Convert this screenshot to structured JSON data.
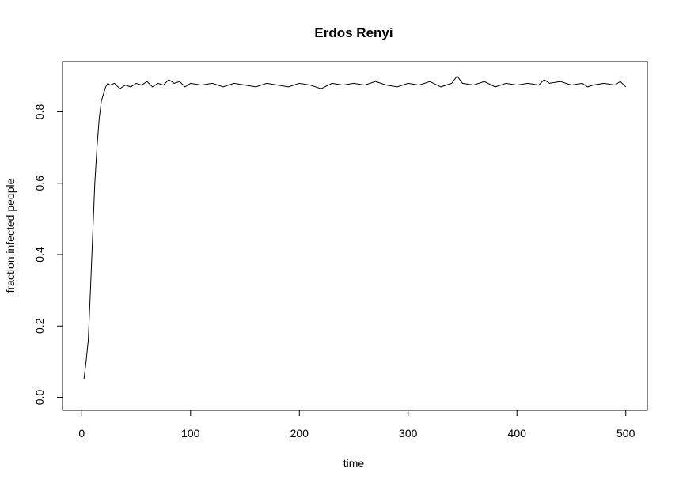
{
  "chart_data": {
    "type": "line",
    "title": "Erdos Renyi",
    "xlabel": "time",
    "ylabel": "fraction infected people",
    "xlim": [
      1,
      500
    ],
    "ylim": [
      0.0,
      0.9
    ],
    "x_ticks": [
      0,
      100,
      200,
      300,
      400,
      500
    ],
    "x_tick_labels": [
      "0",
      "100",
      "200",
      "300",
      "400",
      "500"
    ],
    "y_ticks": [
      0.0,
      0.2,
      0.4,
      0.6,
      0.8
    ],
    "y_tick_labels": [
      "0.0",
      "0.2",
      "0.4",
      "0.6",
      "0.8"
    ],
    "grid": false,
    "legend": "none",
    "series": [
      {
        "color": "#000000",
        "points": [
          [
            2,
            0.05
          ],
          [
            4,
            0.1
          ],
          [
            6,
            0.16
          ],
          [
            8,
            0.3
          ],
          [
            10,
            0.45
          ],
          [
            12,
            0.6
          ],
          [
            14,
            0.7
          ],
          [
            16,
            0.78
          ],
          [
            18,
            0.83
          ],
          [
            20,
            0.85
          ],
          [
            22,
            0.87
          ],
          [
            24,
            0.88
          ],
          [
            26,
            0.875
          ],
          [
            30,
            0.88
          ],
          [
            35,
            0.865
          ],
          [
            40,
            0.875
          ],
          [
            45,
            0.87
          ],
          [
            50,
            0.88
          ],
          [
            55,
            0.875
          ],
          [
            60,
            0.885
          ],
          [
            65,
            0.87
          ],
          [
            70,
            0.88
          ],
          [
            75,
            0.875
          ],
          [
            80,
            0.89
          ],
          [
            85,
            0.88
          ],
          [
            90,
            0.885
          ],
          [
            95,
            0.87
          ],
          [
            100,
            0.88
          ],
          [
            110,
            0.875
          ],
          [
            120,
            0.88
          ],
          [
            130,
            0.87
          ],
          [
            140,
            0.88
          ],
          [
            150,
            0.875
          ],
          [
            160,
            0.87
          ],
          [
            170,
            0.88
          ],
          [
            180,
            0.875
          ],
          [
            190,
            0.87
          ],
          [
            200,
            0.88
          ],
          [
            210,
            0.875
          ],
          [
            220,
            0.865
          ],
          [
            230,
            0.88
          ],
          [
            240,
            0.875
          ],
          [
            250,
            0.88
          ],
          [
            260,
            0.875
          ],
          [
            270,
            0.885
          ],
          [
            280,
            0.875
          ],
          [
            290,
            0.87
          ],
          [
            300,
            0.88
          ],
          [
            310,
            0.875
          ],
          [
            320,
            0.885
          ],
          [
            330,
            0.87
          ],
          [
            340,
            0.88
          ],
          [
            345,
            0.9
          ],
          [
            350,
            0.88
          ],
          [
            360,
            0.875
          ],
          [
            370,
            0.885
          ],
          [
            380,
            0.87
          ],
          [
            390,
            0.88
          ],
          [
            400,
            0.875
          ],
          [
            410,
            0.88
          ],
          [
            420,
            0.875
          ],
          [
            425,
            0.89
          ],
          [
            430,
            0.88
          ],
          [
            440,
            0.885
          ],
          [
            450,
            0.875
          ],
          [
            460,
            0.88
          ],
          [
            465,
            0.87
          ],
          [
            470,
            0.875
          ],
          [
            480,
            0.88
          ],
          [
            490,
            0.875
          ],
          [
            495,
            0.885
          ],
          [
            500,
            0.87
          ]
        ]
      }
    ]
  }
}
